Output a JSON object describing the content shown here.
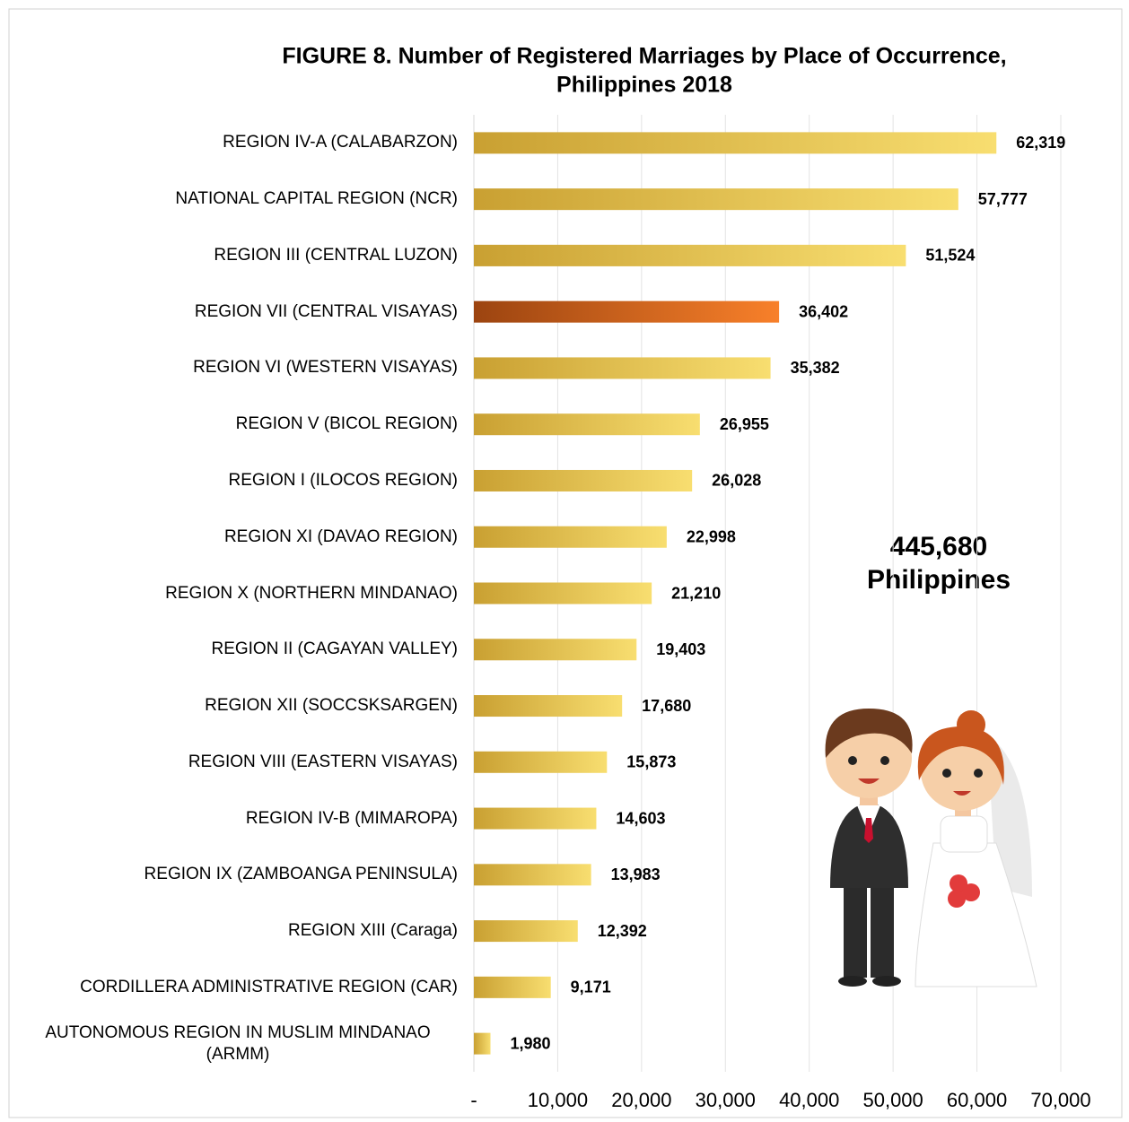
{
  "chart_data": {
    "type": "bar",
    "orientation": "horizontal",
    "title": "FIGURE 8. Number of Registered  Marriages by Place of Occurrence,",
    "subtitle": "Philippines 2018",
    "categories": [
      "REGION IV-A (CALABARZON)",
      "NATIONAL CAPITAL REGION (NCR)",
      "REGION III (CENTRAL LUZON)",
      "REGION VII (CENTRAL VISAYAS)",
      "REGION VI (WESTERN VISAYAS)",
      "REGION V (BICOL REGION)",
      "REGION I (ILOCOS REGION)",
      "REGION XI (DAVAO REGION)",
      "REGION X (NORTHERN MINDANAO)",
      "REGION II (CAGAYAN VALLEY)",
      "REGION XII (SOCCSKSARGEN)",
      "REGION VIII (EASTERN VISAYAS)",
      "REGION IV-B (MIMAROPA)",
      "REGION IX (ZAMBOANGA PENINSULA)",
      "REGION XIII (Caraga)",
      "CORDILLERA ADMINISTRATIVE REGION (CAR)",
      "AUTONOMOUS REGION IN MUSLIM MINDANAO (ARMM)"
    ],
    "values": [
      62319,
      57777,
      51524,
      36402,
      35382,
      26955,
      26028,
      22998,
      21210,
      19403,
      17680,
      15873,
      14603,
      13983,
      12392,
      9171,
      1980
    ],
    "value_labels": [
      "62,319",
      "57,777",
      "51,524",
      "36,402",
      "35,382",
      "26,955",
      "26,028",
      "22,998",
      "21,210",
      "19,403",
      "17,680",
      "15,873",
      "14,603",
      "13,983",
      "12,392",
      "9,171",
      "1,980"
    ],
    "colors": [
      "gold",
      "gold",
      "gold",
      "orange",
      "gold",
      "gold",
      "gold",
      "gold",
      "gold",
      "gold",
      "gold",
      "gold",
      "gold",
      "gold",
      "gold",
      "gold",
      "gold"
    ],
    "xlim": [
      0,
      70000
    ],
    "xticks": [
      {
        "value": 0,
        "label": "-"
      },
      {
        "value": 10000,
        "label": "10,000"
      },
      {
        "value": 20000,
        "label": "20,000"
      },
      {
        "value": 30000,
        "label": "30,000"
      },
      {
        "value": 40000,
        "label": "40,000"
      },
      {
        "value": 50000,
        "label": "50,000"
      },
      {
        "value": 60000,
        "label": "60,000"
      },
      {
        "value": 70000,
        "label": "70,000"
      }
    ],
    "grid": true,
    "annotation": [
      "445,680",
      "Philippines"
    ]
  }
}
